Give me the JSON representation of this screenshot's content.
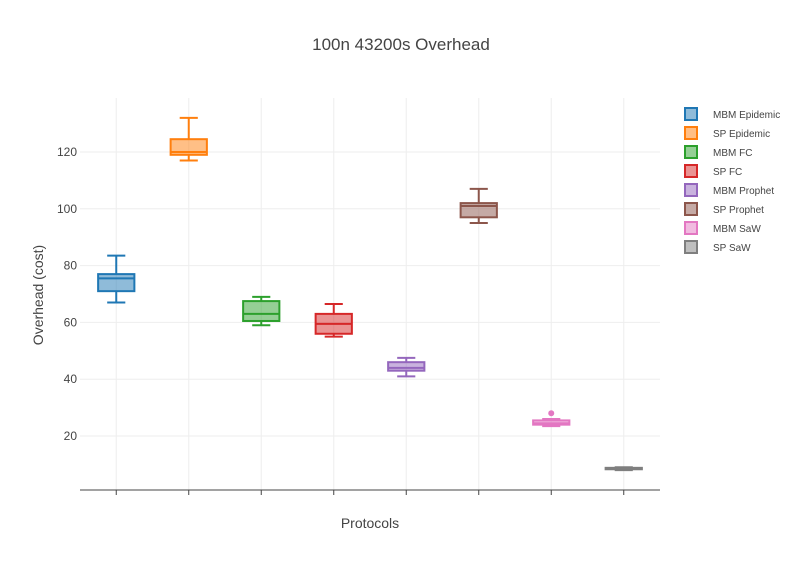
{
  "chart_data": {
    "type": "box",
    "title": "100n 43200s Overhead",
    "xlabel": "Protocols",
    "ylabel": "Overhead (cost)",
    "ylim": [
      1,
      139
    ],
    "yticks": [
      20,
      40,
      60,
      80,
      100,
      120
    ],
    "grid": true,
    "legend_position": "top-right",
    "series": [
      {
        "name": "MBM  Epidemic",
        "color": "#1f77b4",
        "min": 67,
        "q1": 71,
        "median": 75.5,
        "q3": 77,
        "max": 83.5,
        "outliers": []
      },
      {
        "name": "SP Epidemic",
        "color": "#ff7f0e",
        "min": 117,
        "q1": 119,
        "median": 120,
        "q3": 124.5,
        "max": 132,
        "outliers": []
      },
      {
        "name": "MBM FC",
        "color": "#2ca02c",
        "min": 59,
        "q1": 60.5,
        "median": 63,
        "q3": 67.5,
        "max": 69,
        "outliers": []
      },
      {
        "name": "SP FC",
        "color": "#d62728",
        "min": 55,
        "q1": 56,
        "median": 59.5,
        "q3": 63,
        "max": 66.5,
        "outliers": []
      },
      {
        "name": "MBM Prophet",
        "color": "#9467bd",
        "min": 41,
        "q1": 43,
        "median": 44,
        "q3": 46,
        "max": 47.5,
        "outliers": []
      },
      {
        "name": "SP Prophet",
        "color": "#8c564b",
        "min": 95,
        "q1": 97,
        "median": 101,
        "q3": 102,
        "max": 107,
        "outliers": []
      },
      {
        "name": "MBM SaW",
        "color": "#e377c2",
        "min": 23.5,
        "q1": 24,
        "median": 24.5,
        "q3": 25.5,
        "max": 26,
        "outliers": [
          28
        ]
      },
      {
        "name": "SP SaW",
        "color": "#7f7f7f",
        "min": 8,
        "q1": 8.3,
        "median": 8.5,
        "q3": 8.8,
        "max": 9,
        "outliers": []
      }
    ]
  }
}
